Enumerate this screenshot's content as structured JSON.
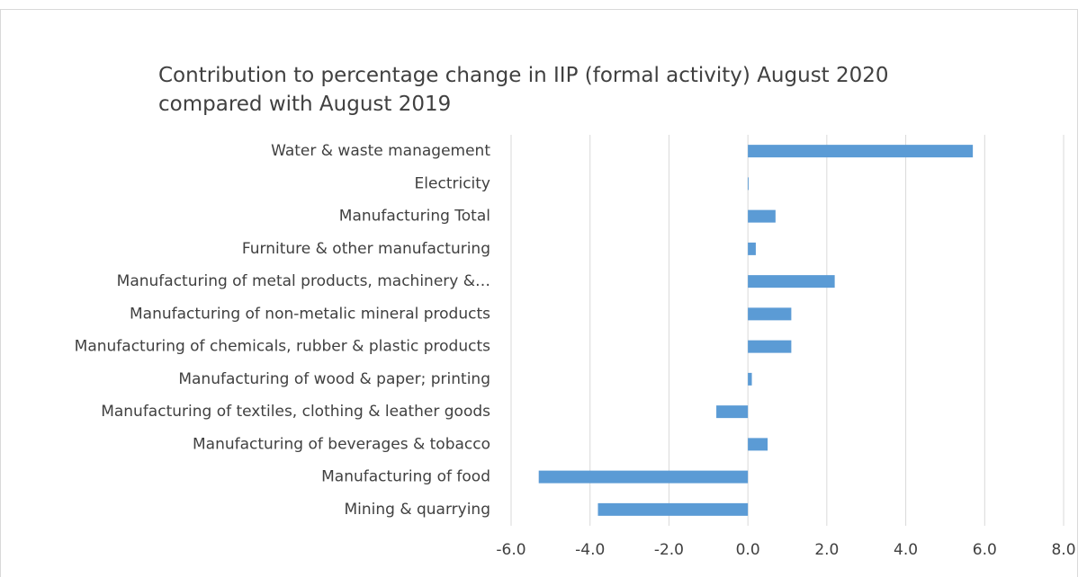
{
  "chart_data": {
    "type": "hbar",
    "title": [
      "Contribution to percentage change in IIP (formal activity) August 2020",
      "compared with August 2019"
    ],
    "categories": [
      "Water & waste management",
      "Electricity",
      "Manufacturing Total",
      "Furniture & other manufacturing",
      "Manufacturing of metal products, machinery &…",
      "Manufacturing of non-metalic mineral products",
      "Manufacturing of chemicals, rubber & plastic products",
      "Manufacturing of wood & paper; printing",
      "Manufacturing of textiles, clothing & leather goods",
      "Manufacturing of beverages & tobacco",
      "Manufacturing of food",
      "Mining & quarrying"
    ],
    "values": [
      5.7,
      0.02,
      0.7,
      0.2,
      2.2,
      1.1,
      1.1,
      0.1,
      -0.8,
      0.5,
      -5.3,
      -3.8
    ],
    "color": "#5b9bd5",
    "xlim": [
      -6,
      8
    ],
    "xticks": [
      {
        "value": -6,
        "label": "-6.0"
      },
      {
        "value": -4,
        "label": "-4.0"
      },
      {
        "value": -2,
        "label": "-2.0"
      },
      {
        "value": 0,
        "label": "0.0"
      },
      {
        "value": 2,
        "label": "2.0"
      },
      {
        "value": 4,
        "label": "4.0"
      },
      {
        "value": 6,
        "label": "6.0"
      },
      {
        "value": 8,
        "label": "8.0"
      }
    ],
    "grid": true
  }
}
